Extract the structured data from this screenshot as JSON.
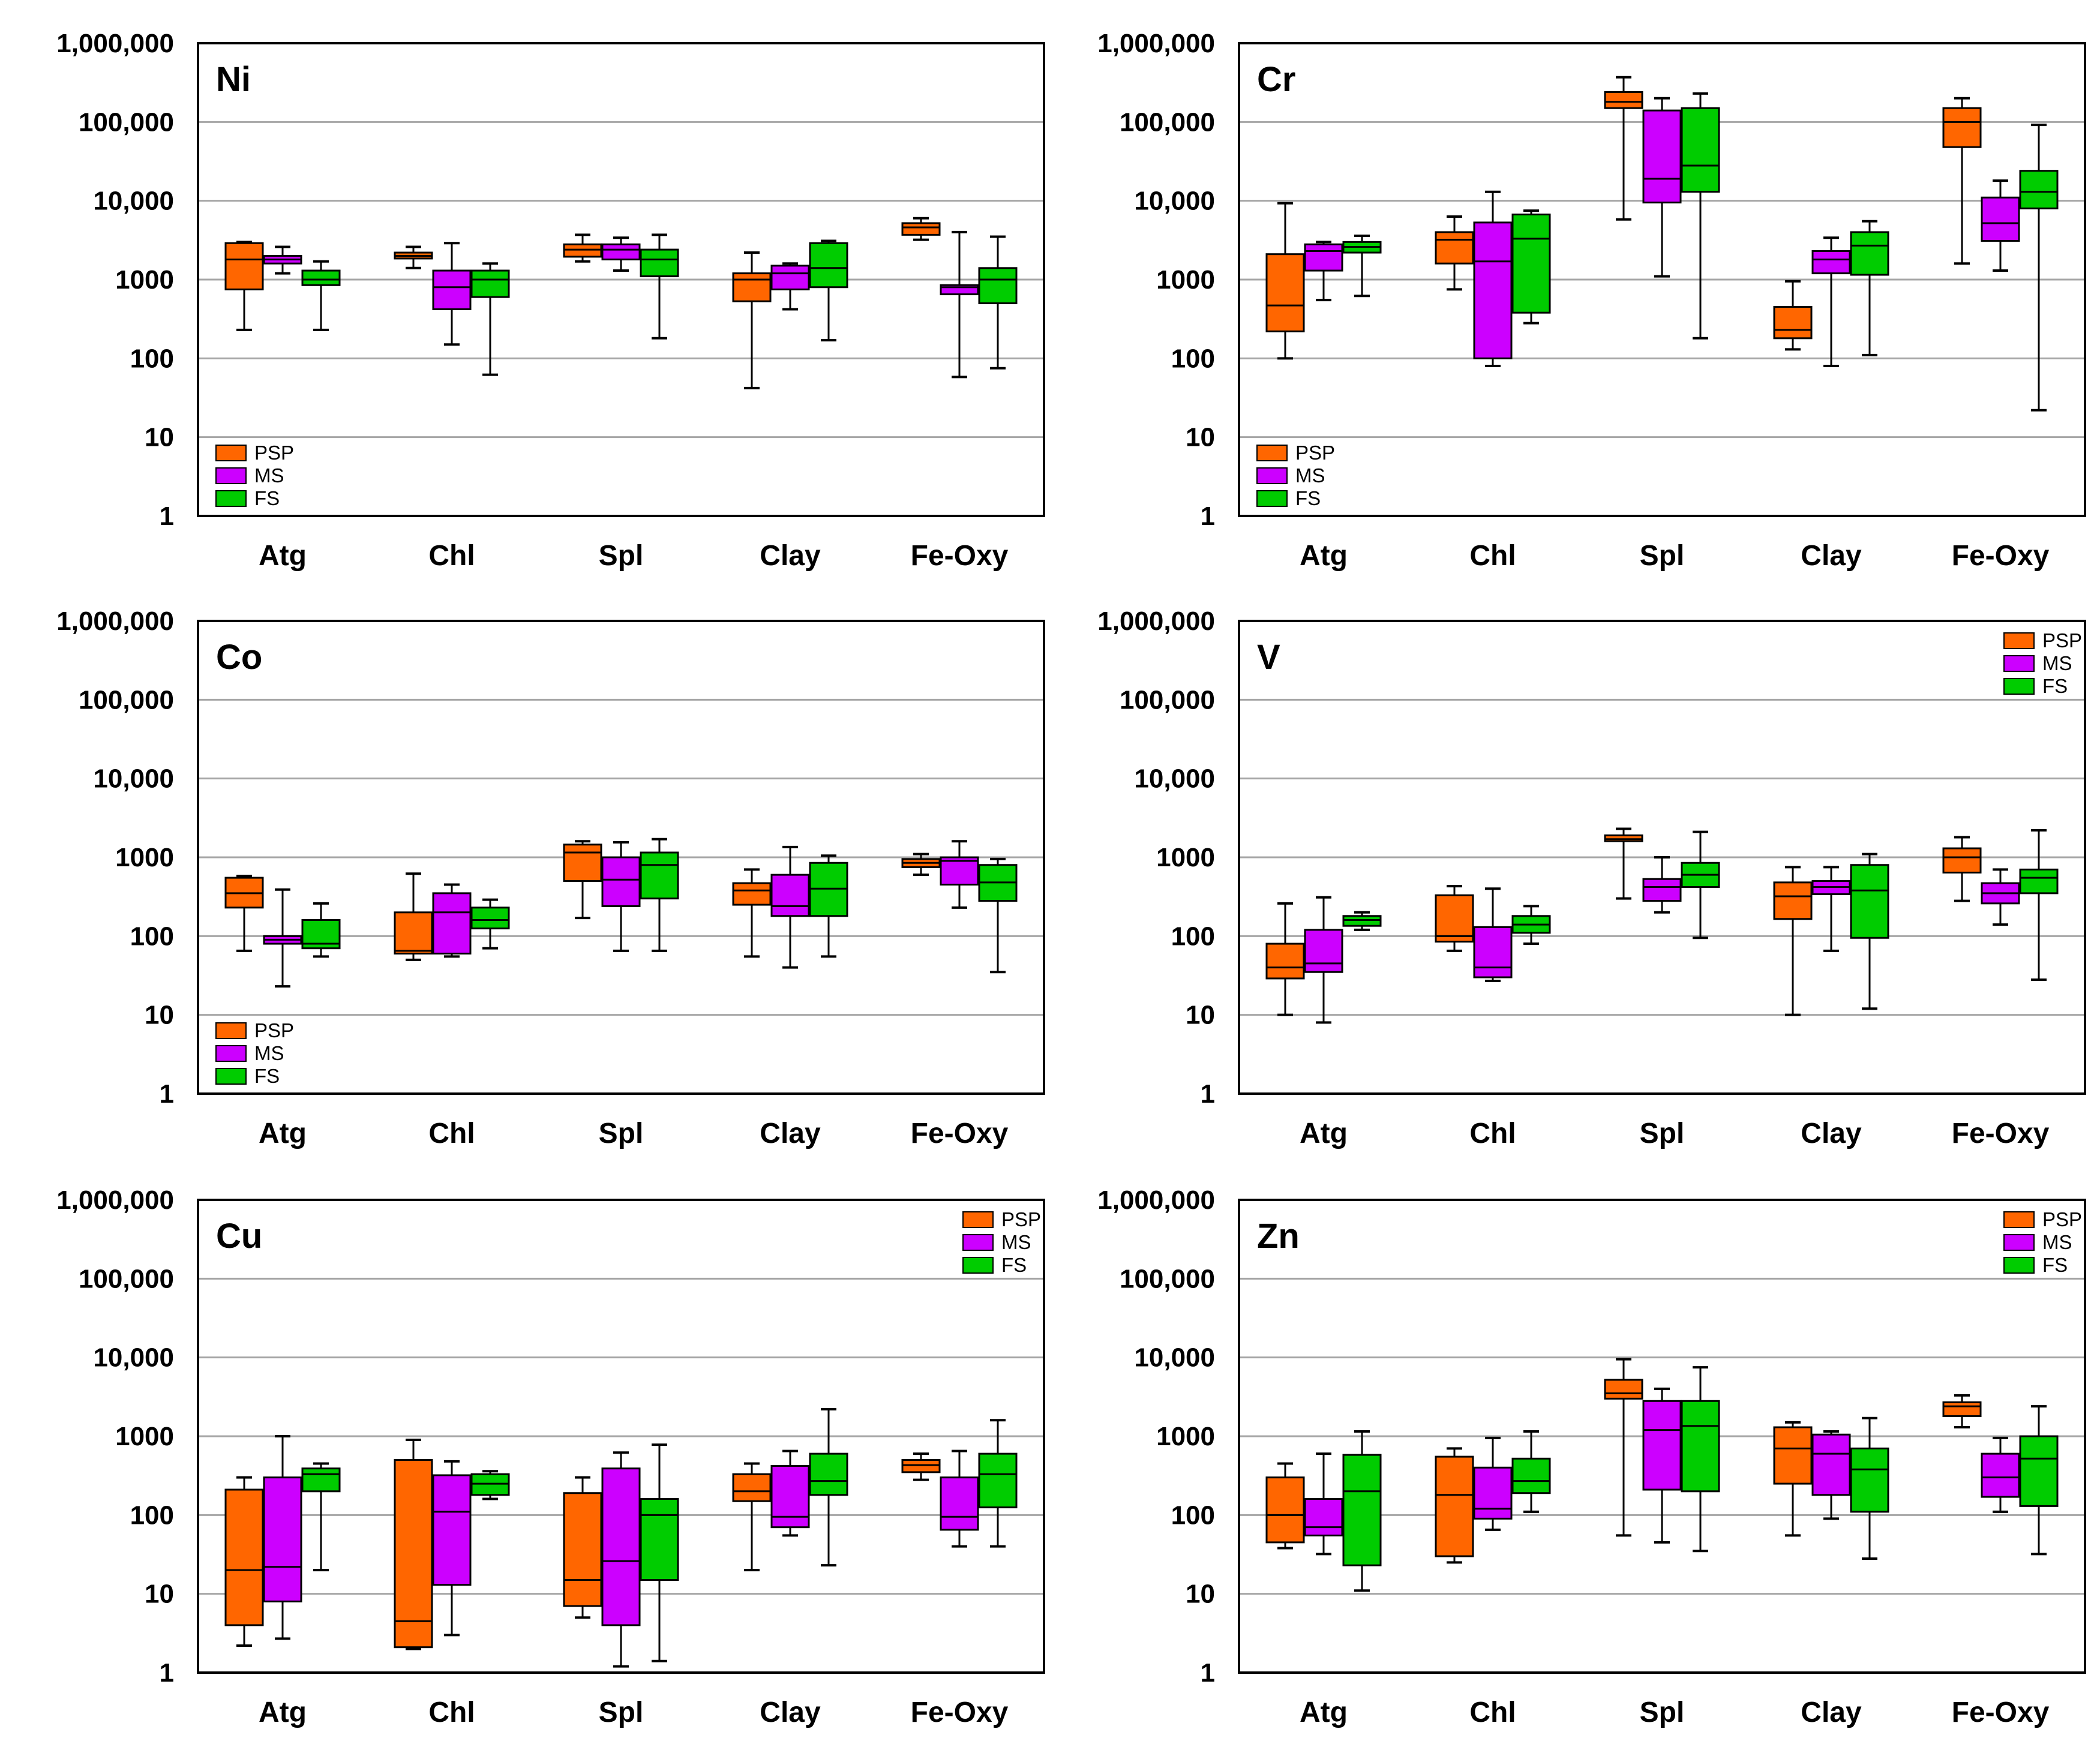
{
  "legend": [
    "PSP",
    "MS",
    "FS"
  ],
  "colors": {
    "PSP": "#ff6600",
    "MS": "#cc00ff",
    "FS": "#00cc00"
  },
  "chart_data": [
    {
      "type": "box",
      "title": "Ni",
      "yscale": "log",
      "ylim": [
        1,
        1000000
      ],
      "yticks": [
        "1",
        "10",
        "100",
        "1000",
        "10,000",
        "100,000",
        "1,000,000"
      ],
      "categories": [
        "Atg",
        "Chl",
        "Spl",
        "Clay",
        "Fe-Oxy"
      ],
      "legend_position": "bottom-left",
      "series": [
        {
          "name": "PSP",
          "boxes": [
            {
              "min": 230,
              "q1": 750,
              "median": 1800,
              "q3": 2900,
              "max": 3000
            },
            {
              "min": 1400,
              "q1": 1850,
              "median": 2000,
              "q3": 2200,
              "max": 2600
            },
            {
              "min": 1700,
              "q1": 1950,
              "median": 2400,
              "q3": 2800,
              "max": 3700
            },
            {
              "min": 42,
              "q1": 530,
              "median": 1000,
              "q3": 1200,
              "max": 2200
            },
            {
              "min": 3200,
              "q1": 3700,
              "median": 4600,
              "q3": 5200,
              "max": 6000
            }
          ]
        },
        {
          "name": "MS",
          "boxes": [
            {
              "min": 1200,
              "q1": 1600,
              "median": 1800,
              "q3": 2000,
              "max": 2600
            },
            {
              "min": 150,
              "q1": 420,
              "median": 800,
              "q3": 1300,
              "max": 2900
            },
            {
              "min": 1300,
              "q1": 1800,
              "median": 2400,
              "q3": 2800,
              "max": 3400
            },
            {
              "min": 420,
              "q1": 750,
              "median": 1200,
              "q3": 1500,
              "max": 1600
            },
            {
              "min": 58,
              "q1": 650,
              "median": 800,
              "q3": 850,
              "max": 4000
            }
          ]
        },
        {
          "name": "FS",
          "boxes": [
            {
              "min": 230,
              "q1": 850,
              "median": 1000,
              "q3": 1300,
              "max": 1700
            },
            {
              "min": 62,
              "q1": 600,
              "median": 1000,
              "q3": 1300,
              "max": 1600
            },
            {
              "min": 180,
              "q1": 1100,
              "median": 1800,
              "q3": 2400,
              "max": 3700
            },
            {
              "min": 170,
              "q1": 800,
              "median": 1400,
              "q3": 2900,
              "max": 3100
            },
            {
              "min": 75,
              "q1": 500,
              "median": 1000,
              "q3": 1400,
              "max": 3500
            }
          ]
        }
      ]
    },
    {
      "type": "box",
      "title": "Cr",
      "yscale": "log",
      "ylim": [
        1,
        1000000
      ],
      "yticks": [
        "1",
        "10",
        "100",
        "1000",
        "10,000",
        "100,000",
        "1,000,000"
      ],
      "categories": [
        "Atg",
        "Chl",
        "Spl",
        "Clay",
        "Fe-Oxy"
      ],
      "legend_position": "bottom-left",
      "series": [
        {
          "name": "PSP",
          "boxes": [
            {
              "min": 100,
              "q1": 220,
              "median": 470,
              "q3": 2100,
              "max": 9300
            },
            {
              "min": 750,
              "q1": 1600,
              "median": 3200,
              "q3": 4000,
              "max": 6300
            },
            {
              "min": 5800,
              "q1": 150000,
              "median": 180000,
              "q3": 240000,
              "max": 370000
            },
            {
              "min": 130,
              "q1": 180,
              "median": 230,
              "q3": 450,
              "max": 950
            },
            {
              "min": 1600,
              "q1": 48000,
              "median": 100000,
              "q3": 150000,
              "max": 200000
            }
          ]
        },
        {
          "name": "MS",
          "boxes": [
            {
              "min": 550,
              "q1": 1300,
              "median": 2300,
              "q3": 2800,
              "max": 3000
            },
            {
              "min": 80,
              "q1": 100,
              "median": 1700,
              "q3": 5300,
              "max": 13000
            },
            {
              "min": 1100,
              "q1": 9500,
              "median": 19000,
              "q3": 140000,
              "max": 200000
            },
            {
              "min": 80,
              "q1": 1200,
              "median": 1800,
              "q3": 2300,
              "max": 3400
            },
            {
              "min": 1300,
              "q1": 3100,
              "median": 5200,
              "q3": 11000,
              "max": 18000
            }
          ]
        },
        {
          "name": "FS",
          "boxes": [
            {
              "min": 620,
              "q1": 2200,
              "median": 2600,
              "q3": 3000,
              "max": 3600
            },
            {
              "min": 280,
              "q1": 380,
              "median": 3300,
              "q3": 6700,
              "max": 7500
            },
            {
              "min": 180,
              "q1": 13000,
              "median": 28000,
              "q3": 150000,
              "max": 230000
            },
            {
              "min": 110,
              "q1": 1150,
              "median": 2700,
              "q3": 4000,
              "max": 5500
            },
            {
              "min": 22,
              "q1": 8000,
              "median": 13000,
              "q3": 24000,
              "max": 92000
            }
          ]
        }
      ]
    },
    {
      "type": "box",
      "title": "Co",
      "yscale": "log",
      "ylim": [
        1,
        1000000
      ],
      "yticks": [
        "1",
        "10",
        "100",
        "1000",
        "10,000",
        "100,000",
        "1,000,000"
      ],
      "categories": [
        "Atg",
        "Chl",
        "Spl",
        "Clay",
        "Fe-Oxy"
      ],
      "legend_position": "bottom-left",
      "series": [
        {
          "name": "PSP",
          "boxes": [
            {
              "min": 65,
              "q1": 230,
              "median": 350,
              "q3": 550,
              "max": 580
            },
            {
              "min": 50,
              "q1": 60,
              "median": 65,
              "q3": 200,
              "max": 620
            },
            {
              "min": 170,
              "q1": 500,
              "median": 1150,
              "q3": 1450,
              "max": 1600
            },
            {
              "min": 55,
              "q1": 250,
              "median": 380,
              "q3": 470,
              "max": 700
            },
            {
              "min": 600,
              "q1": 750,
              "median": 850,
              "q3": 950,
              "max": 1100
            }
          ]
        },
        {
          "name": "MS",
          "boxes": [
            {
              "min": 23,
              "q1": 80,
              "median": 90,
              "q3": 100,
              "max": 390
            },
            {
              "min": 55,
              "q1": 60,
              "median": 200,
              "q3": 350,
              "max": 450
            },
            {
              "min": 65,
              "q1": 240,
              "median": 520,
              "q3": 1000,
              "max": 1550
            },
            {
              "min": 40,
              "q1": 180,
              "median": 240,
              "q3": 600,
              "max": 1350
            },
            {
              "min": 230,
              "q1": 450,
              "median": 900,
              "q3": 1000,
              "max": 1600
            }
          ]
        },
        {
          "name": "FS",
          "boxes": [
            {
              "min": 55,
              "q1": 70,
              "median": 80,
              "q3": 160,
              "max": 260
            },
            {
              "min": 70,
              "q1": 125,
              "median": 160,
              "q3": 230,
              "max": 290
            },
            {
              "min": 65,
              "q1": 300,
              "median": 800,
              "q3": 1150,
              "max": 1700
            },
            {
              "min": 55,
              "q1": 180,
              "median": 400,
              "q3": 850,
              "max": 1050
            },
            {
              "min": 35,
              "q1": 280,
              "median": 480,
              "q3": 800,
              "max": 950
            }
          ]
        }
      ]
    },
    {
      "type": "box",
      "title": "V",
      "yscale": "log",
      "ylim": [
        1,
        1000000
      ],
      "yticks": [
        "1",
        "10",
        "100",
        "1000",
        "10,000",
        "100,000",
        "1,000,000"
      ],
      "categories": [
        "Atg",
        "Chl",
        "Spl",
        "Clay",
        "Fe-Oxy"
      ],
      "legend_position": "top-right",
      "series": [
        {
          "name": "PSP",
          "boxes": [
            {
              "min": 10,
              "q1": 29,
              "median": 40,
              "q3": 80,
              "max": 260
            },
            {
              "min": 65,
              "q1": 85,
              "median": 100,
              "q3": 330,
              "max": 430
            },
            {
              "min": 300,
              "q1": 1600,
              "median": 1700,
              "q3": 1900,
              "max": 2300
            },
            {
              "min": 10,
              "q1": 165,
              "median": 320,
              "q3": 480,
              "max": 750
            },
            {
              "min": 280,
              "q1": 640,
              "median": 1000,
              "q3": 1300,
              "max": 1800
            }
          ]
        },
        {
          "name": "MS",
          "boxes": [
            {
              "min": 8,
              "q1": 35,
              "median": 45,
              "q3": 120,
              "max": 310
            },
            {
              "min": 27,
              "q1": 30,
              "median": 40,
              "q3": 130,
              "max": 400
            },
            {
              "min": 200,
              "q1": 280,
              "median": 420,
              "q3": 530,
              "max": 1000
            },
            {
              "min": 65,
              "q1": 340,
              "median": 420,
              "q3": 500,
              "max": 750
            },
            {
              "min": 140,
              "q1": 260,
              "median": 350,
              "q3": 470,
              "max": 700
            }
          ]
        },
        {
          "name": "FS",
          "boxes": [
            {
              "min": 120,
              "q1": 135,
              "median": 160,
              "q3": 180,
              "max": 200
            },
            {
              "min": 80,
              "q1": 110,
              "median": 140,
              "q3": 180,
              "max": 240
            },
            {
              "min": 95,
              "q1": 420,
              "median": 600,
              "q3": 850,
              "max": 2100
            },
            {
              "min": 12,
              "q1": 95,
              "median": 380,
              "q3": 800,
              "max": 1100
            },
            {
              "min": 28,
              "q1": 350,
              "median": 550,
              "q3": 700,
              "max": 2200
            }
          ]
        }
      ]
    },
    {
      "type": "box",
      "title": "Cu",
      "yscale": "log",
      "ylim": [
        1,
        1000000
      ],
      "yticks": [
        "1",
        "10",
        "100",
        "1000",
        "10,000",
        "100,000",
        "1,000,000"
      ],
      "categories": [
        "Atg",
        "Chl",
        "Spl",
        "Clay",
        "Fe-Oxy"
      ],
      "legend_position": "top-right",
      "series": [
        {
          "name": "PSP",
          "boxes": [
            {
              "min": 2.2,
              "q1": 4,
              "median": 20,
              "q3": 210,
              "max": 300
            },
            {
              "min": 2,
              "q1": 2.1,
              "median": 4.5,
              "q3": 500,
              "max": 900
            },
            {
              "min": 5,
              "q1": 7,
              "median": 15,
              "q3": 190,
              "max": 300
            },
            {
              "min": 20,
              "q1": 150,
              "median": 200,
              "q3": 330,
              "max": 450
            },
            {
              "min": 280,
              "q1": 350,
              "median": 430,
              "q3": 500,
              "max": 600
            }
          ]
        },
        {
          "name": "MS",
          "boxes": [
            {
              "min": 2.7,
              "q1": 8,
              "median": 22,
              "q3": 300,
              "max": 1000
            },
            {
              "min": 3,
              "q1": 13,
              "median": 110,
              "q3": 320,
              "max": 480
            },
            {
              "min": 1.2,
              "q1": 4,
              "median": 26,
              "q3": 390,
              "max": 620
            },
            {
              "min": 55,
              "q1": 70,
              "median": 95,
              "q3": 420,
              "max": 650
            },
            {
              "min": 40,
              "q1": 65,
              "median": 95,
              "q3": 300,
              "max": 650
            }
          ]
        },
        {
          "name": "FS",
          "boxes": [
            {
              "min": 20,
              "q1": 200,
              "median": 330,
              "q3": 390,
              "max": 450
            },
            {
              "min": 160,
              "q1": 180,
              "median": 250,
              "q3": 330,
              "max": 360
            },
            {
              "min": 1.4,
              "q1": 15,
              "median": 100,
              "q3": 160,
              "max": 780
            },
            {
              "min": 23,
              "q1": 180,
              "median": 270,
              "q3": 600,
              "max": 2200
            },
            {
              "min": 40,
              "q1": 125,
              "median": 330,
              "q3": 600,
              "max": 1600
            }
          ]
        }
      ]
    },
    {
      "type": "box",
      "title": "Zn",
      "yscale": "log",
      "ylim": [
        1,
        1000000
      ],
      "yticks": [
        "1",
        "10",
        "100",
        "1000",
        "10,000",
        "100,000",
        "1,000,000"
      ],
      "categories": [
        "Atg",
        "Chl",
        "Spl",
        "Clay",
        "Fe-Oxy"
      ],
      "legend_position": "top-right",
      "series": [
        {
          "name": "PSP",
          "boxes": [
            {
              "min": 38,
              "q1": 45,
              "median": 100,
              "q3": 300,
              "max": 450
            },
            {
              "min": 25,
              "q1": 30,
              "median": 180,
              "q3": 550,
              "max": 700
            },
            {
              "min": 55,
              "q1": 3000,
              "median": 3500,
              "q3": 5200,
              "max": 9500
            },
            {
              "min": 55,
              "q1": 250,
              "median": 700,
              "q3": 1300,
              "max": 1500
            },
            {
              "min": 1300,
              "q1": 1800,
              "median": 2400,
              "q3": 2700,
              "max": 3300
            }
          ]
        },
        {
          "name": "MS",
          "boxes": [
            {
              "min": 32,
              "q1": 55,
              "median": 70,
              "q3": 160,
              "max": 600
            },
            {
              "min": 65,
              "q1": 90,
              "median": 120,
              "q3": 400,
              "max": 950
            },
            {
              "min": 45,
              "q1": 210,
              "median": 1200,
              "q3": 2800,
              "max": 4000
            },
            {
              "min": 90,
              "q1": 180,
              "median": 600,
              "q3": 1050,
              "max": 1150
            },
            {
              "min": 110,
              "q1": 170,
              "median": 300,
              "q3": 600,
              "max": 950
            }
          ]
        },
        {
          "name": "FS",
          "boxes": [
            {
              "min": 11,
              "q1": 23,
              "median": 200,
              "q3": 580,
              "max": 1150
            },
            {
              "min": 110,
              "q1": 190,
              "median": 270,
              "q3": 520,
              "max": 1150
            },
            {
              "min": 35,
              "q1": 200,
              "median": 1350,
              "q3": 2800,
              "max": 7500
            },
            {
              "min": 28,
              "q1": 110,
              "median": 380,
              "q3": 700,
              "max": 1700
            },
            {
              "min": 32,
              "q1": 130,
              "median": 520,
              "q3": 1000,
              "max": 2400
            }
          ]
        }
      ]
    }
  ]
}
